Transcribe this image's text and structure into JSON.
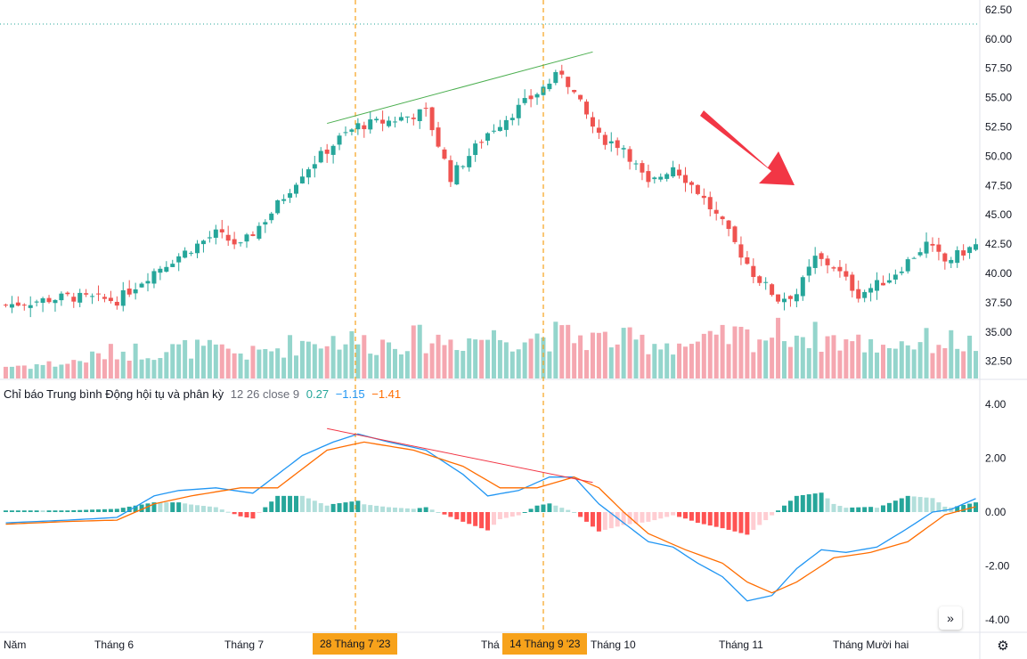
{
  "chart_data": {
    "type": "candlestick",
    "price_axis": {
      "ticks": [
        "62.50",
        "60.00",
        "57.50",
        "55.00",
        "52.50",
        "50.00",
        "47.50",
        "45.00",
        "42.50",
        "40.00",
        "37.50",
        "35.00",
        "32.50"
      ],
      "range": [
        30.5,
        62.8
      ]
    },
    "macd_axis": {
      "ticks": [
        "4.00",
        "2.00",
        "0.00",
        "-2.00",
        "-4.00"
      ],
      "range": [
        -4.3,
        4.3
      ]
    },
    "time_axis": [
      "Năm",
      "Tháng 6",
      "Tháng 7",
      "Thá",
      "Tháng 10",
      "Tháng 11",
      "Tháng Mười hai"
    ],
    "highlight_dates": [
      "28 Tháng 7 '23",
      "14 Tháng 9 '23"
    ],
    "anchors": {
      "price": [
        [
          0,
          37.3
        ],
        [
          10,
          38.0
        ],
        [
          18,
          37.7
        ],
        [
          24,
          40.2
        ],
        [
          28,
          41.5
        ],
        [
          34,
          43.4
        ],
        [
          38,
          42.3
        ],
        [
          43,
          45.2
        ],
        [
          48,
          48.6
        ],
        [
          54,
          51.5
        ],
        [
          57,
          52.6
        ],
        [
          62,
          53.0
        ],
        [
          68,
          53.8
        ],
        [
          72,
          48.2
        ],
        [
          78,
          52.0
        ],
        [
          86,
          55.4
        ],
        [
          90,
          57.2
        ],
        [
          96,
          51.6
        ],
        [
          100,
          50.8
        ],
        [
          104,
          47.5
        ],
        [
          108,
          49.2
        ],
        [
          112,
          47.0
        ],
        [
          116,
          44.2
        ],
        [
          121,
          40.0
        ],
        [
          125,
          37.8
        ],
        [
          128,
          38.3
        ],
        [
          131,
          41.3
        ],
        [
          134,
          40.6
        ],
        [
          138,
          38.2
        ],
        [
          143,
          39.6
        ],
        [
          149,
          42.5
        ],
        [
          152,
          41.0
        ],
        [
          157,
          42.4
        ]
      ],
      "volume": [
        [
          0,
          0.8
        ],
        [
          10,
          1.0
        ],
        [
          18,
          1.8
        ],
        [
          24,
          1.8
        ],
        [
          30,
          2.0
        ],
        [
          40,
          1.6
        ],
        [
          48,
          2.4
        ],
        [
          54,
          2.6
        ],
        [
          60,
          2.3
        ],
        [
          66,
          2.6
        ],
        [
          72,
          2.5
        ],
        [
          78,
          2.7
        ],
        [
          86,
          2.8
        ],
        [
          90,
          2.8
        ],
        [
          96,
          2.6
        ],
        [
          104,
          2.4
        ],
        [
          112,
          2.2
        ],
        [
          118,
          2.8
        ],
        [
          122,
          2.7
        ],
        [
          126,
          3.1
        ],
        [
          132,
          2.7
        ],
        [
          140,
          2.2
        ],
        [
          146,
          2.4
        ],
        [
          152,
          2.5
        ],
        [
          157,
          2.2
        ]
      ],
      "macd": [
        [
          0,
          -0.4
        ],
        [
          10,
          -0.3
        ],
        [
          18,
          -0.2
        ],
        [
          24,
          0.6
        ],
        [
          28,
          0.8
        ],
        [
          34,
          0.9
        ],
        [
          40,
          0.7
        ],
        [
          44,
          1.4
        ],
        [
          48,
          2.1
        ],
        [
          53,
          2.6
        ],
        [
          57,
          2.9
        ],
        [
          62,
          2.6
        ],
        [
          68,
          2.3
        ],
        [
          74,
          1.4
        ],
        [
          78,
          0.6
        ],
        [
          83,
          0.8
        ],
        [
          88,
          1.3
        ],
        [
          92,
          1.3
        ],
        [
          96,
          0.3
        ],
        [
          100,
          -0.4
        ],
        [
          104,
          -1.1
        ],
        [
          108,
          -1.3
        ],
        [
          112,
          -1.9
        ],
        [
          116,
          -2.4
        ],
        [
          120,
          -3.3
        ],
        [
          124,
          -3.1
        ],
        [
          128,
          -2.1
        ],
        [
          132,
          -1.4
        ],
        [
          136,
          -1.5
        ],
        [
          141,
          -1.3
        ],
        [
          146,
          -0.6
        ],
        [
          150,
          0.0
        ],
        [
          153,
          0.1
        ],
        [
          157,
          0.5
        ]
      ],
      "signal": [
        [
          0,
          -0.45
        ],
        [
          10,
          -0.35
        ],
        [
          18,
          -0.3
        ],
        [
          24,
          0.3
        ],
        [
          30,
          0.6
        ],
        [
          38,
          0.9
        ],
        [
          44,
          0.9
        ],
        [
          52,
          2.3
        ],
        [
          58,
          2.6
        ],
        [
          66,
          2.3
        ],
        [
          74,
          1.7
        ],
        [
          80,
          0.9
        ],
        [
          86,
          0.9
        ],
        [
          92,
          1.3
        ],
        [
          96,
          0.9
        ],
        [
          100,
          0.0
        ],
        [
          104,
          -0.8
        ],
        [
          110,
          -1.4
        ],
        [
          116,
          -1.9
        ],
        [
          120,
          -2.6
        ],
        [
          124,
          -3.0
        ],
        [
          128,
          -2.6
        ],
        [
          134,
          -1.7
        ],
        [
          140,
          -1.5
        ],
        [
          146,
          -1.1
        ],
        [
          152,
          -0.1
        ],
        [
          157,
          0.2
        ]
      ]
    },
    "candle_count": 158,
    "annotations": [
      {
        "type": "trendline",
        "panel": "price",
        "color": "#4caf50"
      },
      {
        "type": "trendline",
        "panel": "macd",
        "color": "#f23645"
      },
      {
        "type": "arrow",
        "panel": "price",
        "color": "#f23645"
      }
    ],
    "colors": {
      "up": "#26a69a",
      "down": "#ef5350",
      "vol_up": "#94d5cc",
      "vol_down": "#f5a7b0",
      "macd": "#2196f3",
      "signal": "#ff6d00",
      "hist_up_strong": "#26a69a",
      "hist_up_weak": "#b2dfdb",
      "hist_dn_strong": "#ff5252",
      "hist_dn_weak": "#ffcdd2",
      "badge": "#f7a21b",
      "dotted_line": "#26a69a"
    },
    "indicator": {
      "name": "Chỉ báo Trung bình Động hội tụ và phân kỳ",
      "params": "12 26 close 9",
      "hist_value": "0.27",
      "macd_value": "−1.15",
      "signal_value": "−1.41"
    }
  },
  "ui": {
    "scroll_icon": "chevrons-right-icon",
    "settings_icon": "gear-icon"
  }
}
